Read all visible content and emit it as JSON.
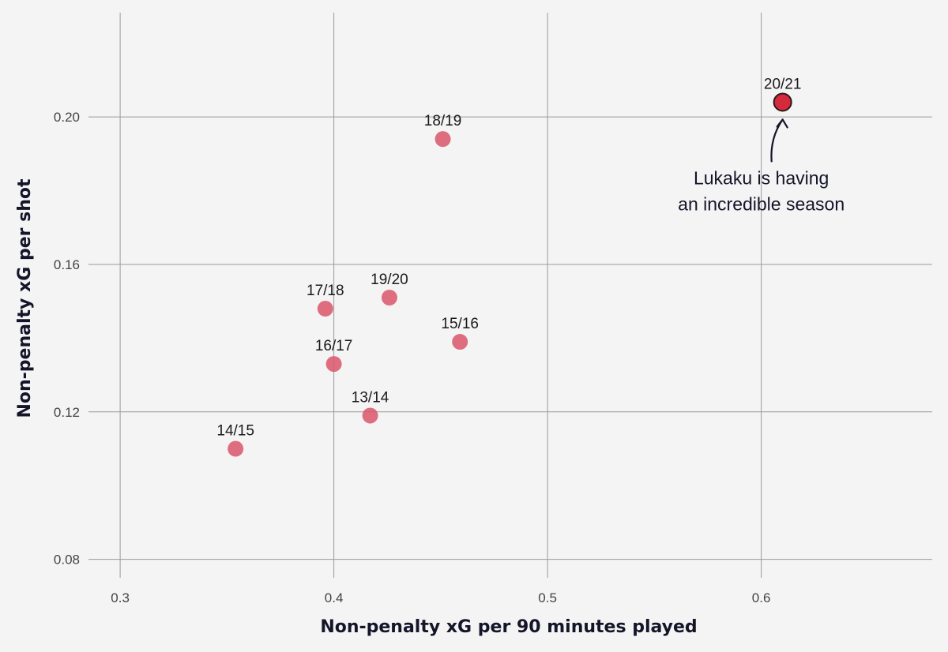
{
  "chart_data": {
    "type": "scatter",
    "title": "",
    "xlabel": "Non-penalty xG per 90 minutes played",
    "ylabel": "Non-penalty xG per shot",
    "xlim": [
      0.28,
      0.68
    ],
    "ylim": [
      0.075,
      0.23
    ],
    "x_ticks": [
      0.3,
      0.4,
      0.5,
      0.6
    ],
    "x_tick_labels": [
      "0.3",
      "0.4",
      "0.5",
      "0.6"
    ],
    "y_ticks": [
      0.08,
      0.12,
      0.16,
      0.2
    ],
    "y_tick_labels": [
      "0.08",
      "0.12",
      "0.16",
      "0.20"
    ],
    "grid": true,
    "colors": {
      "point": "#d9566a",
      "highlight": "#d42a3c",
      "highlight_outline": "#2a1a1a"
    },
    "points": [
      {
        "label": "20/21",
        "x": 0.61,
        "y": 0.204,
        "highlight": true
      },
      {
        "label": "18/19",
        "x": 0.451,
        "y": 0.194,
        "highlight": false
      },
      {
        "label": "17/18",
        "x": 0.396,
        "y": 0.148,
        "highlight": false
      },
      {
        "label": "19/20",
        "x": 0.426,
        "y": 0.151,
        "highlight": false
      },
      {
        "label": "15/16",
        "x": 0.459,
        "y": 0.139,
        "highlight": false
      },
      {
        "label": "16/17",
        "x": 0.4,
        "y": 0.133,
        "highlight": false
      },
      {
        "label": "13/14",
        "x": 0.417,
        "y": 0.119,
        "highlight": false
      },
      {
        "label": "14/15",
        "x": 0.354,
        "y": 0.11,
        "highlight": false
      }
    ],
    "annotation": {
      "lines": [
        "Lukaku is having",
        "an incredible season"
      ],
      "points_to": "20/21"
    }
  }
}
